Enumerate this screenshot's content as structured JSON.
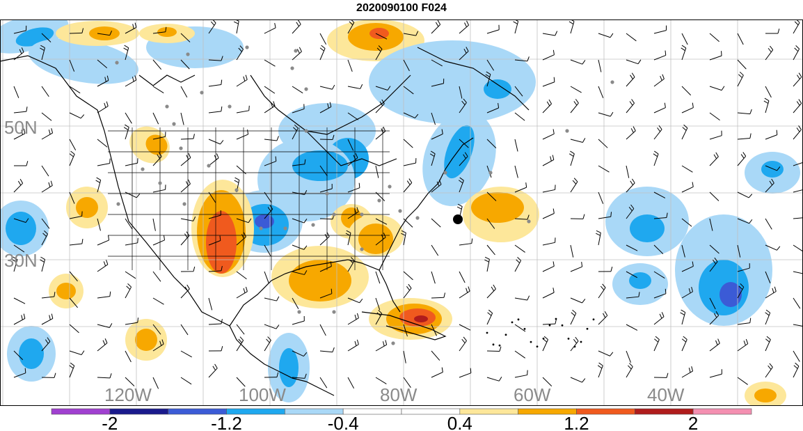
{
  "title": "2020090100 F024",
  "map": {
    "lat_labels": [
      "50N",
      "30N"
    ],
    "lon_labels": [
      "120W",
      "100W",
      "80W",
      "60W",
      "40W"
    ]
  },
  "colorbar": {
    "colors": [
      "#a040d0",
      "#1a1a8c",
      "#3b5bd6",
      "#1fa8ef",
      "#a9d8f7",
      "#ffffff",
      "#ffffff",
      "#fde79a",
      "#f7a800",
      "#f05a1e",
      "#b01c1c",
      "#f48fb1"
    ],
    "labels": [
      "-2",
      "-1.2",
      "-0.4",
      "0.4",
      "1.2",
      "2"
    ]
  },
  "palette": {
    "grid": "#c0c0c0",
    "coast": "#000000",
    "station_dot": "#8a8a8a",
    "marker": "#000000"
  }
}
